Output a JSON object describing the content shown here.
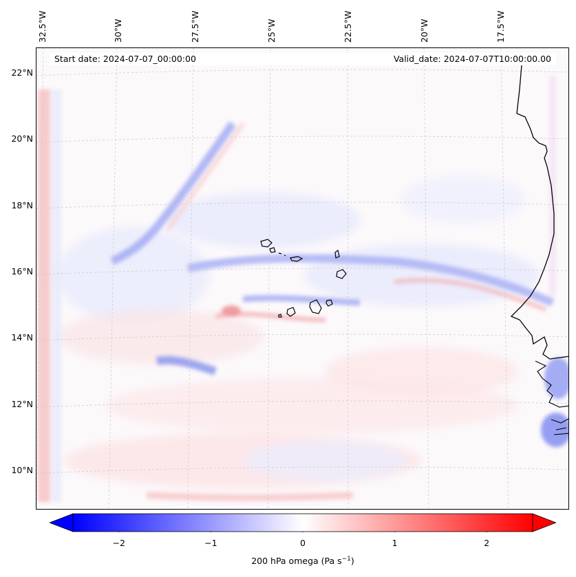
{
  "map": {
    "title_left": "Start date: 2024-07-07_00:00:00",
    "title_right": "Valid_date: 2024-07-07T10:00:00.00",
    "longitude_labels": [
      "32.5°W",
      "30°W",
      "27.5°W",
      "25°W",
      "22.5°W",
      "20°W",
      "17.5°W"
    ],
    "latitude_labels": [
      "22°N",
      "20°N",
      "18°N",
      "16°N",
      "14°N",
      "12°N",
      "10°N"
    ],
    "extent": {
      "lon_west": -33.0,
      "lon_east": -15.5,
      "lat_south": 9.0,
      "lat_north": 22.5
    },
    "field": "200 hPa omega",
    "features": [
      "coastline-west-africa",
      "cape-verde-islands"
    ]
  },
  "colorbar": {
    "label": "200 hPa omega (Pa s",
    "label_superscript": "−1",
    "label_close": ")",
    "ticks": [
      "−2",
      "−1",
      "0",
      "1",
      "2"
    ],
    "tick_values": [
      -2,
      -1,
      0,
      1,
      2
    ],
    "vmin": -2.5,
    "vmax": 2.5,
    "extend": "both",
    "color_low": "#0000ff",
    "color_mid": "#ffffff",
    "color_high": "#ff0000"
  }
}
